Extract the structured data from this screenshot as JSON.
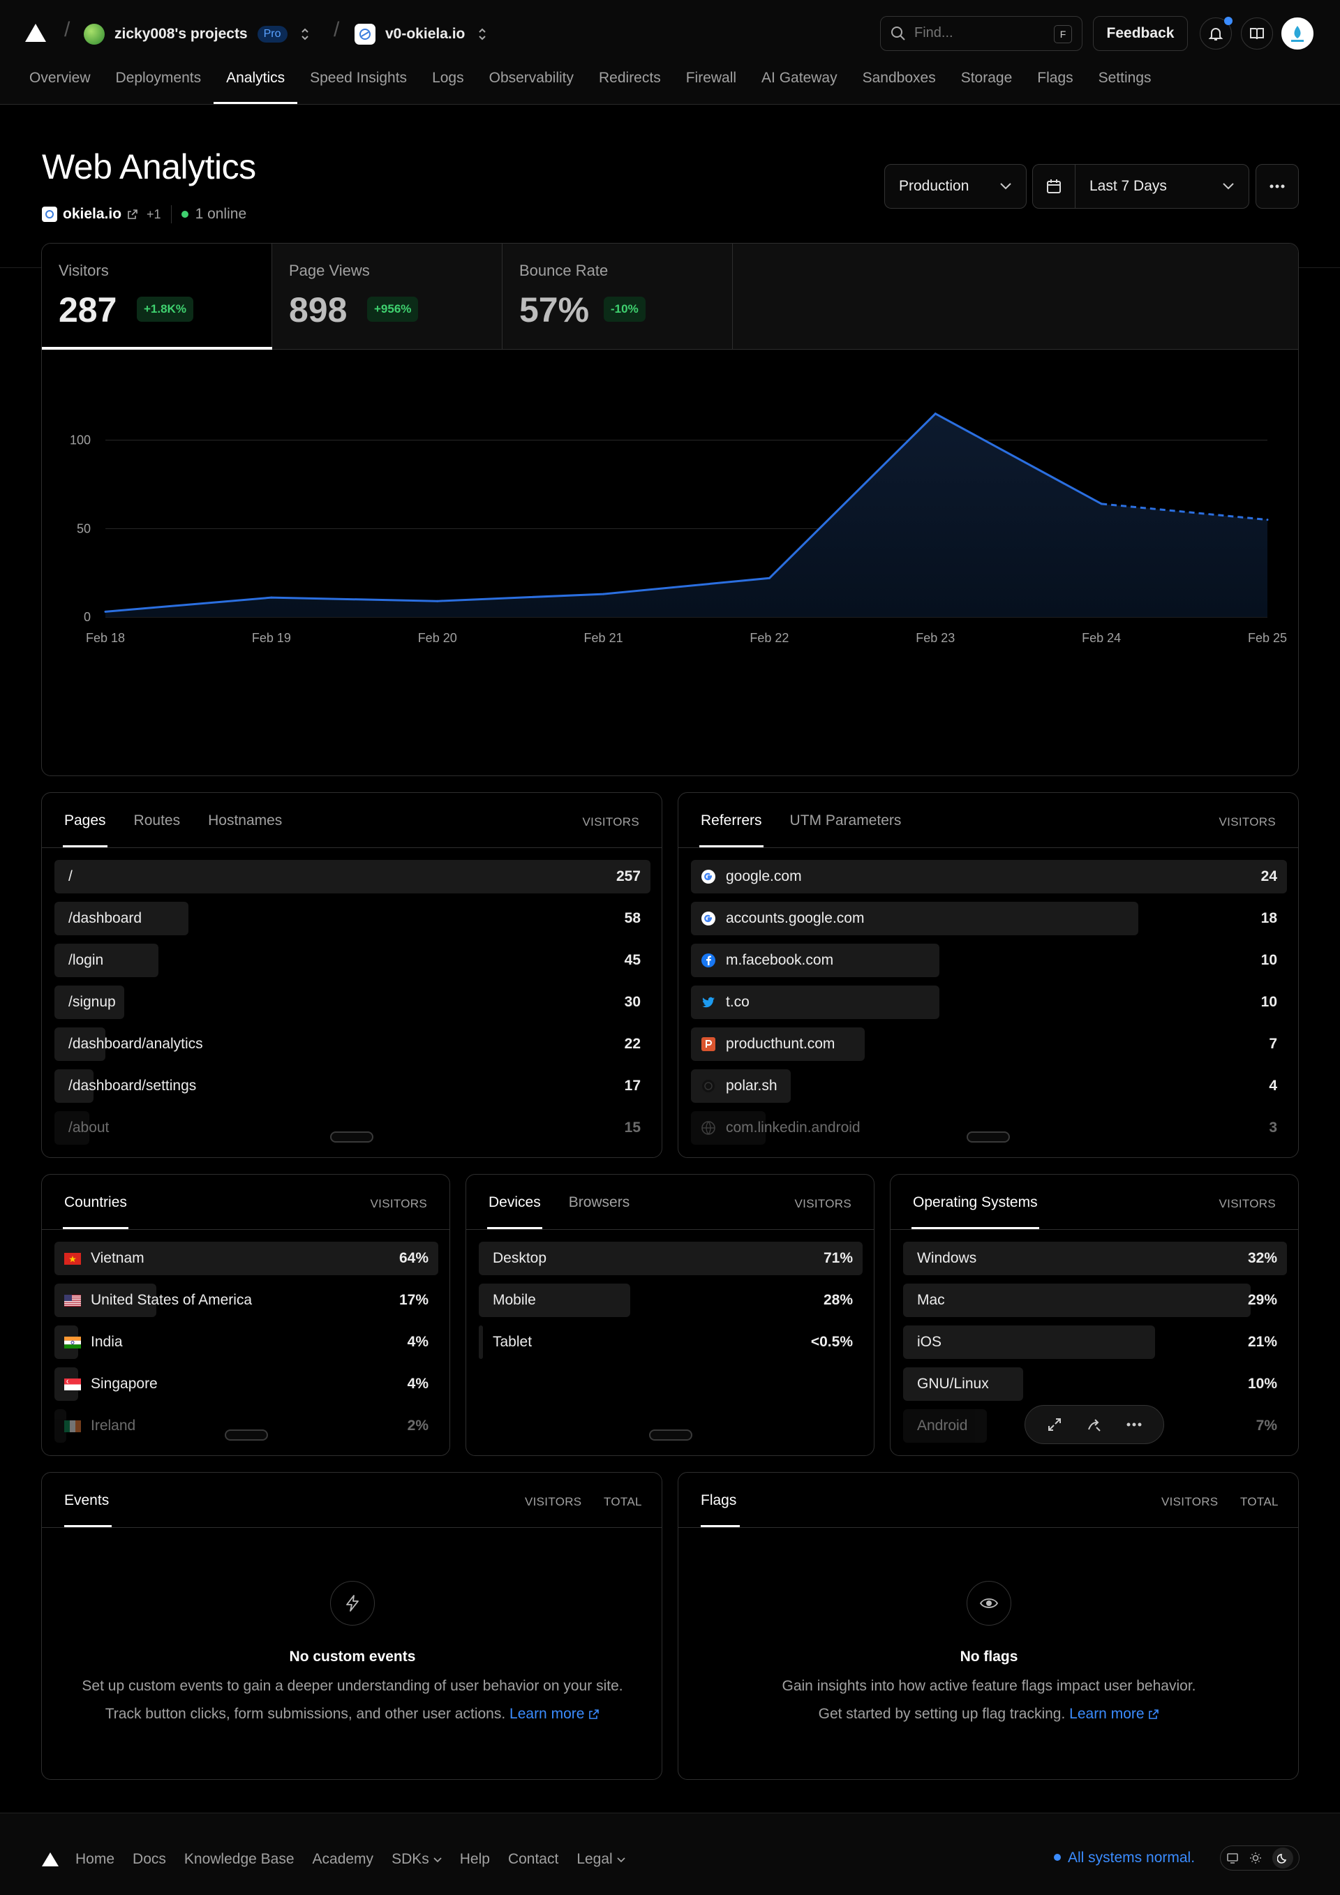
{
  "header": {
    "team": "zicky008's projects",
    "plan_badge": "Pro",
    "project": "v0-okiela.io",
    "search_placeholder": "Find...",
    "search_shortcut": "F",
    "feedback_label": "Feedback"
  },
  "nav": [
    "Overview",
    "Deployments",
    "Analytics",
    "Speed Insights",
    "Logs",
    "Observability",
    "Redirects",
    "Firewall",
    "AI Gateway",
    "Sandboxes",
    "Storage",
    "Flags",
    "Settings"
  ],
  "nav_active": "Analytics",
  "page": {
    "title": "Web Analytics",
    "domain": "okiela.io",
    "domain_extra": "+1",
    "online": "1 online",
    "environment": "Production",
    "range": "Last 7 Days"
  },
  "stats": [
    {
      "label": "Visitors",
      "value": "287",
      "delta": "+1.8K%"
    },
    {
      "label": "Page Views",
      "value": "898",
      "delta": "+956%"
    },
    {
      "label": "Bounce Rate",
      "value": "57%",
      "delta": "-10%"
    }
  ],
  "chart_data": {
    "type": "area",
    "x": [
      "Feb 18",
      "Feb 19",
      "Feb 20",
      "Feb 21",
      "Feb 22",
      "Feb 23",
      "Feb 24",
      "Feb 25"
    ],
    "series": [
      {
        "values": [
          3,
          11,
          9,
          13,
          22,
          115,
          64,
          55
        ]
      }
    ],
    "ylim": [
      0,
      120
    ],
    "yticks": [
      "0",
      "50",
      "100"
    ],
    "projected_from_index": 6,
    "color": "#2b6fe0",
    "grid": true
  },
  "pages_panel": {
    "tabs": [
      "Pages",
      "Routes",
      "Hostnames"
    ],
    "column": "VISITORS",
    "rows": [
      {
        "label": "/",
        "value": "257",
        "frac": 1.0
      },
      {
        "label": "/dashboard",
        "value": "58",
        "frac": 0.225
      },
      {
        "label": "/login",
        "value": "45",
        "frac": 0.175
      },
      {
        "label": "/signup",
        "value": "30",
        "frac": 0.117
      },
      {
        "label": "/dashboard/analytics",
        "value": "22",
        "frac": 0.086
      },
      {
        "label": "/dashboard/settings",
        "value": "17",
        "frac": 0.066
      },
      {
        "label": "/about",
        "value": "15",
        "frac": 0.058
      }
    ]
  },
  "referrers_panel": {
    "tabs": [
      "Referrers",
      "UTM Parameters"
    ],
    "column": "VISITORS",
    "rows": [
      {
        "label": "google.com",
        "value": "24",
        "frac": 1.0,
        "icon": "google-icon"
      },
      {
        "label": "accounts.google.com",
        "value": "18",
        "frac": 0.75,
        "icon": "google-icon"
      },
      {
        "label": "m.facebook.com",
        "value": "10",
        "frac": 0.417,
        "icon": "facebook-icon"
      },
      {
        "label": "t.co",
        "value": "10",
        "frac": 0.417,
        "icon": "twitter-icon"
      },
      {
        "label": "producthunt.com",
        "value": "7",
        "frac": 0.292,
        "icon": "producthunt-icon"
      },
      {
        "label": "polar.sh",
        "value": "4",
        "frac": 0.167,
        "icon": "polar-icon"
      },
      {
        "label": "com.linkedin.android",
        "value": "3",
        "frac": 0.125,
        "icon": "globe-icon"
      }
    ]
  },
  "countries_panel": {
    "tabs": [
      "Countries"
    ],
    "column": "VISITORS",
    "rows": [
      {
        "label": "Vietnam",
        "value": "64%",
        "frac": 1.0,
        "flag": "vn"
      },
      {
        "label": "United States of America",
        "value": "17%",
        "frac": 0.266,
        "flag": "us"
      },
      {
        "label": "India",
        "value": "4%",
        "frac": 0.062,
        "flag": "in"
      },
      {
        "label": "Singapore",
        "value": "4%",
        "frac": 0.062,
        "flag": "sg"
      },
      {
        "label": "Ireland",
        "value": "2%",
        "frac": 0.031,
        "flag": "ie"
      }
    ]
  },
  "devices_panel": {
    "tabs": [
      "Devices",
      "Browsers"
    ],
    "column": "VISITORS",
    "rows": [
      {
        "label": "Desktop",
        "value": "71%",
        "frac": 1.0
      },
      {
        "label": "Mobile",
        "value": "28%",
        "frac": 0.394
      },
      {
        "label": "Tablet",
        "value": "<0.5%",
        "frac": 0.007
      }
    ]
  },
  "os_panel": {
    "tabs": [
      "Operating Systems"
    ],
    "column": "VISITORS",
    "rows": [
      {
        "label": "Windows",
        "value": "32%",
        "frac": 1.0
      },
      {
        "label": "Mac",
        "value": "29%",
        "frac": 0.906
      },
      {
        "label": "iOS",
        "value": "21%",
        "frac": 0.656
      },
      {
        "label": "GNU/Linux",
        "value": "10%",
        "frac": 0.313
      },
      {
        "label": "Android",
        "value": "7%",
        "frac": 0.219
      }
    ]
  },
  "events_panel": {
    "tab": "Events",
    "col1": "VISITORS",
    "col2": "TOTAL",
    "empty_title": "No custom events",
    "empty_line1": "Set up custom events to gain a deeper understanding of user behavior on your site.",
    "empty_line2": "Track button clicks, form submissions, and other user actions.",
    "learn_more": "Learn more"
  },
  "flags_panel": {
    "tab": "Flags",
    "col1": "VISITORS",
    "col2": "TOTAL",
    "empty_title": "No flags",
    "empty_line1": "Gain insights into how active feature flags impact user behavior.",
    "empty_line2": "Get started by setting up flag tracking.",
    "learn_more": "Learn more"
  },
  "footer": {
    "links": [
      "Home",
      "Docs",
      "Knowledge Base",
      "Academy",
      "SDKs",
      "Help",
      "Contact",
      "Legal"
    ],
    "status": "All systems normal."
  }
}
